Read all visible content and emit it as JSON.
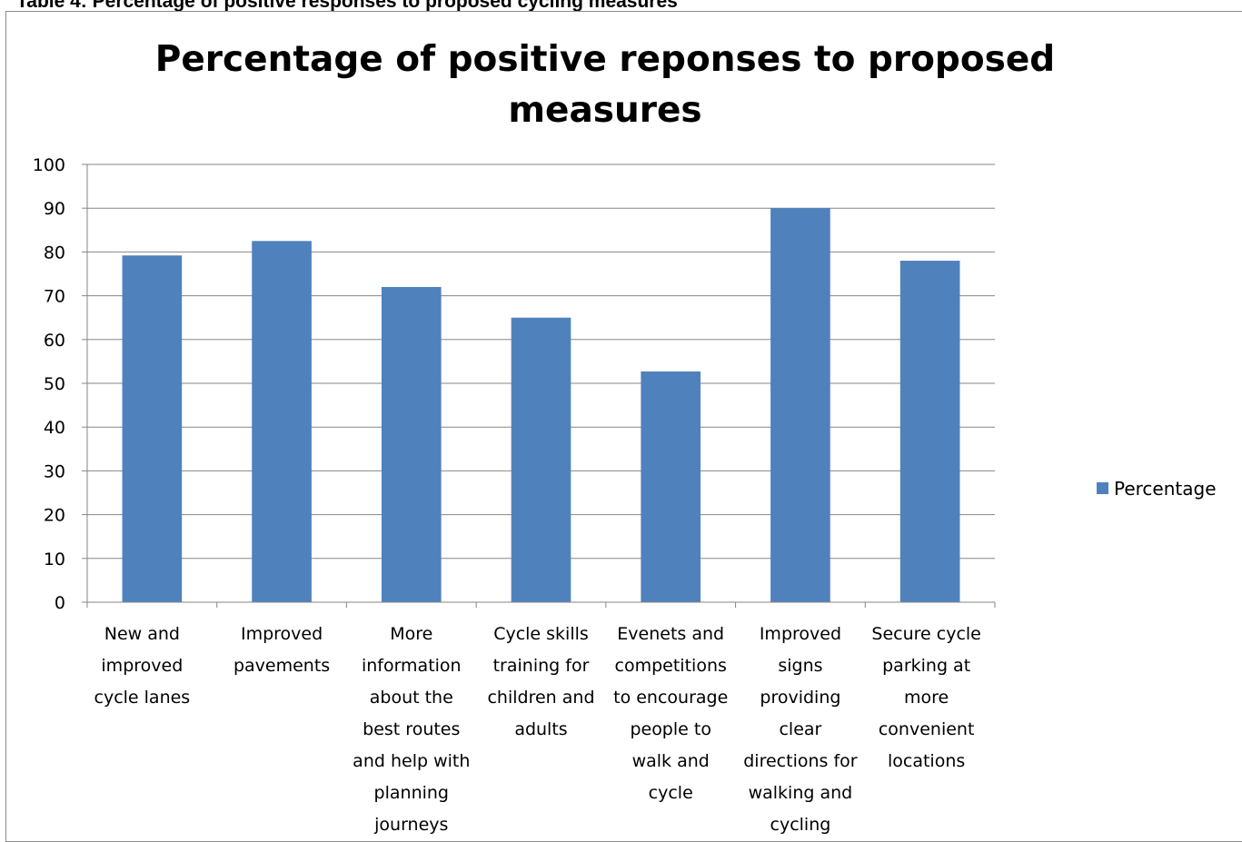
{
  "caption": "Table 4: Percentage of positive responses to proposed cycling measures",
  "chart_data": {
    "type": "bar",
    "title_lines": [
      "Percentage of positive reponses to proposed",
      "measures"
    ],
    "categories": [
      "New and improved cycle lanes",
      "Improved pavements",
      "More information about the best routes and help with planning journeys",
      "Cycle skills training for children and adults",
      "Evenets and competitions to encourage people to walk and cycle",
      "Improved signs providing clear directions for walking and cycling",
      "Secure cycle parking at more convenient locations"
    ],
    "category_lines": [
      [
        "New and",
        "improved",
        "cycle lanes"
      ],
      [
        "Improved",
        "pavements"
      ],
      [
        "More",
        "information",
        "about the",
        "best routes",
        "and help with",
        "planning",
        "journeys"
      ],
      [
        "Cycle skills",
        "training for",
        "children and",
        "adults"
      ],
      [
        "Evenets and",
        "competitions",
        "to encourage",
        "people to",
        "walk and",
        "cycle"
      ],
      [
        "Improved",
        "signs",
        "providing",
        "clear",
        "directions for",
        "walking and",
        "cycling"
      ],
      [
        "Secure cycle",
        "parking at",
        "more",
        "convenient",
        "locations"
      ]
    ],
    "series": [
      {
        "name": "Percentage",
        "values": [
          79.2,
          82.5,
          72,
          65,
          52.7,
          90,
          78
        ],
        "color": "#4f81bd"
      }
    ],
    "yticks": [
      "0",
      "10",
      "20",
      "30",
      "40",
      "50",
      "60",
      "70",
      "80",
      "90",
      "100"
    ],
    "ylim": [
      0,
      100
    ],
    "grid": true,
    "legend_position": "right"
  }
}
